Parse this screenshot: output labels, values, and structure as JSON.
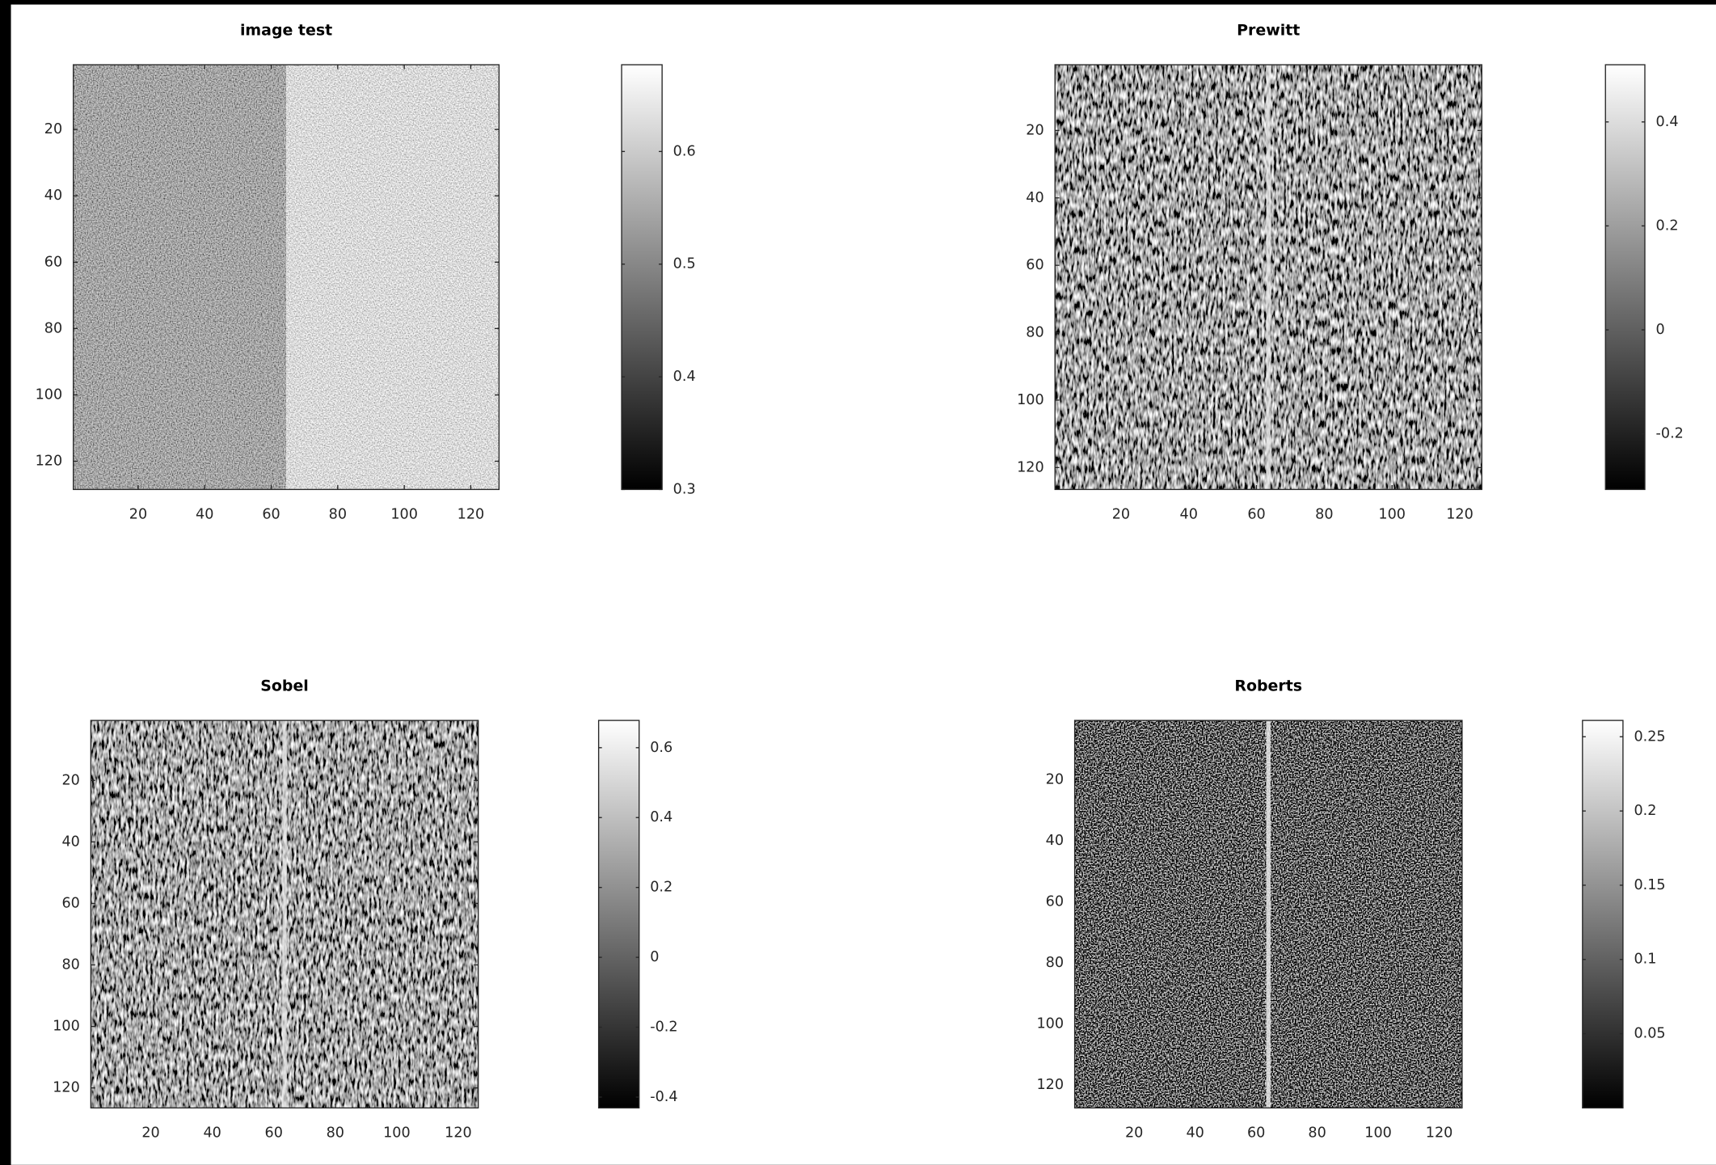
{
  "chart_data": [
    {
      "type": "image",
      "title": "image test",
      "xlim": [
        0.5,
        128.5
      ],
      "ylim": [
        0.5,
        128.5
      ],
      "xticks": [
        20,
        40,
        60,
        80,
        100,
        120
      ],
      "yticks": [
        20,
        40,
        60,
        80,
        100,
        120
      ],
      "clim": [
        0.3,
        0.677
      ],
      "cticks": [
        0.3,
        0.4,
        0.5,
        0.6
      ]
    },
    {
      "type": "image",
      "title": "Prewitt",
      "xlim": [
        0.5,
        126.5
      ],
      "ylim": [
        0.5,
        126.5
      ],
      "xticks": [
        20,
        40,
        60,
        80,
        100,
        120
      ],
      "yticks": [
        20,
        40,
        60,
        80,
        100,
        120
      ],
      "clim": [
        -0.307,
        0.51
      ],
      "cticks": [
        -0.2,
        0,
        0.2,
        0.4
      ]
    },
    {
      "type": "image",
      "title": "Sobel",
      "xlim": [
        0.5,
        126.5
      ],
      "ylim": [
        0.5,
        126.5
      ],
      "xticks": [
        20,
        40,
        60,
        80,
        100,
        120
      ],
      "yticks": [
        20,
        40,
        60,
        80,
        100,
        120
      ],
      "clim": [
        -0.431,
        0.678
      ],
      "cticks": [
        -0.4,
        -0.2,
        0,
        0.2,
        0.4,
        0.6
      ]
    },
    {
      "type": "image",
      "title": "Roberts",
      "xlim": [
        0.5,
        127.5
      ],
      "ylim": [
        0.5,
        127.5
      ],
      "xticks": [
        20,
        40,
        60,
        80,
        100,
        120
      ],
      "yticks": [
        20,
        40,
        60,
        80,
        100,
        120
      ],
      "clim": [
        0,
        0.261
      ],
      "cticks": [
        0.05,
        0.1,
        0.15,
        0.2,
        0.25
      ]
    }
  ]
}
